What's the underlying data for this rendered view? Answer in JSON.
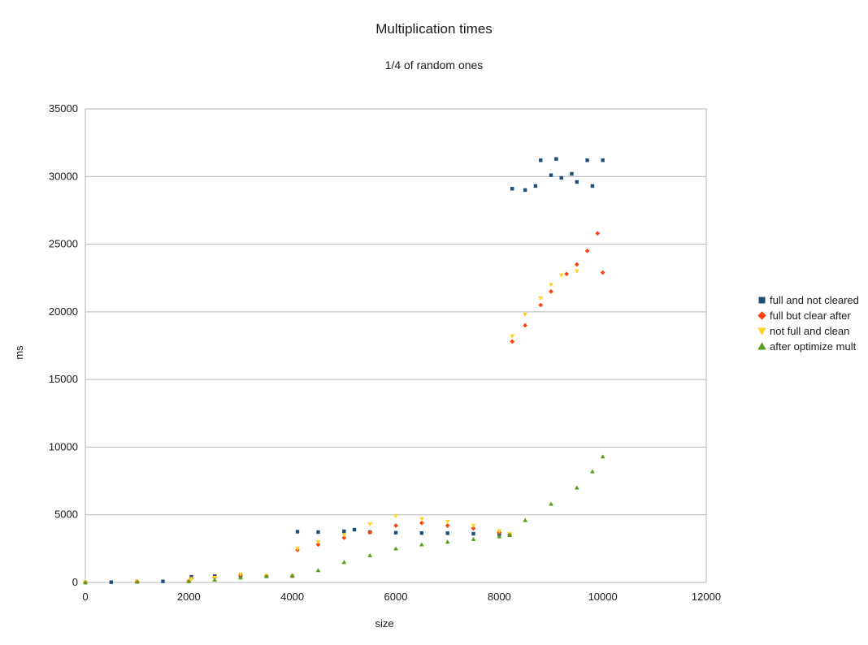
{
  "chart_data": {
    "type": "scatter",
    "title": "Multiplication times",
    "subtitle": "1/4 of random ones",
    "xlabel": "size",
    "ylabel": "ms",
    "xlim": [
      0,
      12000
    ],
    "ylim": [
      0,
      35000
    ],
    "x_ticks": [
      "0",
      "2000",
      "4000",
      "6000",
      "8000",
      "10000",
      "12000"
    ],
    "y_ticks": [
      "0",
      "5000",
      "10000",
      "15000",
      "20000",
      "25000",
      "30000",
      "35000"
    ],
    "grid": "horizontal",
    "legend_position": "right",
    "series": [
      {
        "name": "full and not cleared",
        "color": "#1f4e79",
        "marker": "square",
        "points": [
          [
            0,
            0
          ],
          [
            500,
            20
          ],
          [
            1000,
            60
          ],
          [
            1500,
            80
          ],
          [
            2000,
            100
          ],
          [
            2050,
            420
          ],
          [
            2500,
            470
          ],
          [
            3000,
            480
          ],
          [
            3500,
            470
          ],
          [
            4000,
            480
          ],
          [
            4100,
            3750
          ],
          [
            4500,
            3720
          ],
          [
            5000,
            3780
          ],
          [
            5200,
            3900
          ],
          [
            5500,
            3720
          ],
          [
            6000,
            3680
          ],
          [
            6500,
            3650
          ],
          [
            7000,
            3640
          ],
          [
            7500,
            3600
          ],
          [
            8000,
            3560
          ],
          [
            8200,
            3500
          ],
          [
            8250,
            29100
          ],
          [
            8500,
            29000
          ],
          [
            8700,
            29300
          ],
          [
            8800,
            31200
          ],
          [
            9000,
            30100
          ],
          [
            9100,
            31300
          ],
          [
            9200,
            29900
          ],
          [
            9400,
            30200
          ],
          [
            9500,
            29600
          ],
          [
            9700,
            31200
          ],
          [
            9800,
            29300
          ],
          [
            10000,
            31200
          ]
        ]
      },
      {
        "name": "full but clear after",
        "color": "#ff420e",
        "marker": "diamond",
        "points": [
          [
            0,
            0
          ],
          [
            1000,
            60
          ],
          [
            2000,
            100
          ],
          [
            2050,
            300
          ],
          [
            2500,
            380
          ],
          [
            3000,
            520
          ],
          [
            3500,
            480
          ],
          [
            4000,
            450
          ],
          [
            4100,
            2400
          ],
          [
            4500,
            2800
          ],
          [
            5000,
            3300
          ],
          [
            5500,
            3700
          ],
          [
            6000,
            4200
          ],
          [
            6500,
            4400
          ],
          [
            7000,
            4200
          ],
          [
            7500,
            4000
          ],
          [
            8000,
            3700
          ],
          [
            8200,
            3500
          ],
          [
            8250,
            17800
          ],
          [
            8500,
            19000
          ],
          [
            8800,
            20500
          ],
          [
            9000,
            21500
          ],
          [
            9300,
            22800
          ],
          [
            9500,
            23500
          ],
          [
            9700,
            24500
          ],
          [
            9900,
            25800
          ],
          [
            10000,
            22900
          ]
        ]
      },
      {
        "name": "not full and clean",
        "color": "#ffd320",
        "marker": "triangle-down",
        "points": [
          [
            0,
            0
          ],
          [
            1000,
            60
          ],
          [
            2000,
            100
          ],
          [
            2050,
            250
          ],
          [
            2500,
            350
          ],
          [
            3000,
            600
          ],
          [
            3500,
            500
          ],
          [
            4000,
            450
          ],
          [
            4100,
            2500
          ],
          [
            4500,
            3000
          ],
          [
            5000,
            3500
          ],
          [
            5500,
            4300
          ],
          [
            6000,
            4900
          ],
          [
            6500,
            4700
          ],
          [
            7000,
            4500
          ],
          [
            7500,
            4200
          ],
          [
            8000,
            3800
          ],
          [
            8200,
            3600
          ],
          [
            8250,
            18200
          ],
          [
            8500,
            19800
          ],
          [
            8800,
            21000
          ],
          [
            9000,
            22000
          ],
          [
            9200,
            22700
          ],
          [
            9500,
            23000
          ]
        ]
      },
      {
        "name": "after optimize mult",
        "color": "#579d1c",
        "marker": "triangle-up",
        "points": [
          [
            0,
            0
          ],
          [
            1000,
            50
          ],
          [
            2000,
            80
          ],
          [
            2500,
            200
          ],
          [
            3000,
            350
          ],
          [
            3500,
            450
          ],
          [
            4000,
            500
          ],
          [
            4500,
            900
          ],
          [
            5000,
            1500
          ],
          [
            5500,
            2000
          ],
          [
            6000,
            2500
          ],
          [
            6500,
            2800
          ],
          [
            7000,
            3000
          ],
          [
            7500,
            3200
          ],
          [
            8000,
            3400
          ],
          [
            8200,
            3500
          ],
          [
            8500,
            4600
          ],
          [
            9000,
            5800
          ],
          [
            9500,
            7000
          ],
          [
            9800,
            8200
          ],
          [
            10000,
            9300
          ]
        ]
      }
    ]
  }
}
